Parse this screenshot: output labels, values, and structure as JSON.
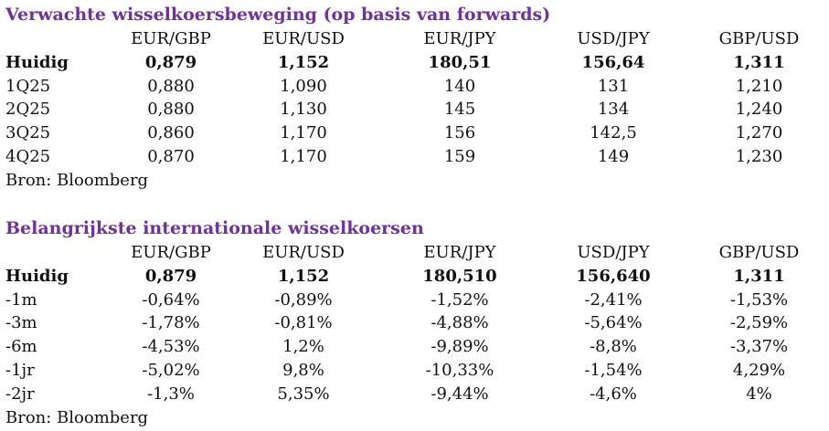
{
  "forwards": {
    "title": "Verwachte wisselkoersbeweging (op basis van forwards)",
    "headers": [
      "EUR/GBP",
      "EUR/USD",
      "EUR/JPY",
      "USD/JPY",
      "GBP/USD"
    ],
    "rows": [
      {
        "label": "Huidig",
        "values": [
          "0,879",
          "1,152",
          "180,51",
          "156,64",
          "1,311"
        ]
      },
      {
        "label": "1Q25",
        "values": [
          "0,880",
          "1,090",
          "140",
          "131",
          "1,210"
        ]
      },
      {
        "label": "2Q25",
        "values": [
          "0,880",
          "1,130",
          "145",
          "134",
          "1,240"
        ]
      },
      {
        "label": "3Q25",
        "values": [
          "0,860",
          "1,170",
          "156",
          "142,5",
          "1,270"
        ]
      },
      {
        "label": "4Q25",
        "values": [
          "0,870",
          "1,170",
          "159",
          "149",
          "1,230"
        ]
      }
    ],
    "source": "Bron: Bloomberg"
  },
  "rates": {
    "title": "Belangrijkste internationale wisselkoersen",
    "headers": [
      "EUR/GBP",
      "EUR/USD",
      "EUR/JPY",
      "USD/JPY",
      "GBP/USD"
    ],
    "rows": [
      {
        "label": "Huidig",
        "values": [
          "0,879",
          "1,152",
          "180,510",
          "156,640",
          "1,311"
        ]
      },
      {
        "label": "-1m",
        "values": [
          "-0,64%",
          "-0,89%",
          "-1,52%",
          "-2,41%",
          "-1,53%"
        ]
      },
      {
        "label": "-3m",
        "values": [
          "-1,78%",
          "-0,81%",
          "-4,88%",
          "-5,64%",
          "-2,59%"
        ]
      },
      {
        "label": "-6m",
        "values": [
          "-4,53%",
          "1,2%",
          "-9,89%",
          "-8,8%",
          "-3,37%"
        ]
      },
      {
        "label": "-1jr",
        "values": [
          "-5,02%",
          "9,8%",
          "-10,33%",
          "-1,54%",
          "4,29%"
        ]
      },
      {
        "label": "-2jr",
        "values": [
          "-1,3%",
          "5,35%",
          "-9,44%",
          "-4,6%",
          "4%"
        ]
      }
    ],
    "source": "Bron: Bloomberg"
  },
  "colors": {
    "title": "#7030a0"
  }
}
